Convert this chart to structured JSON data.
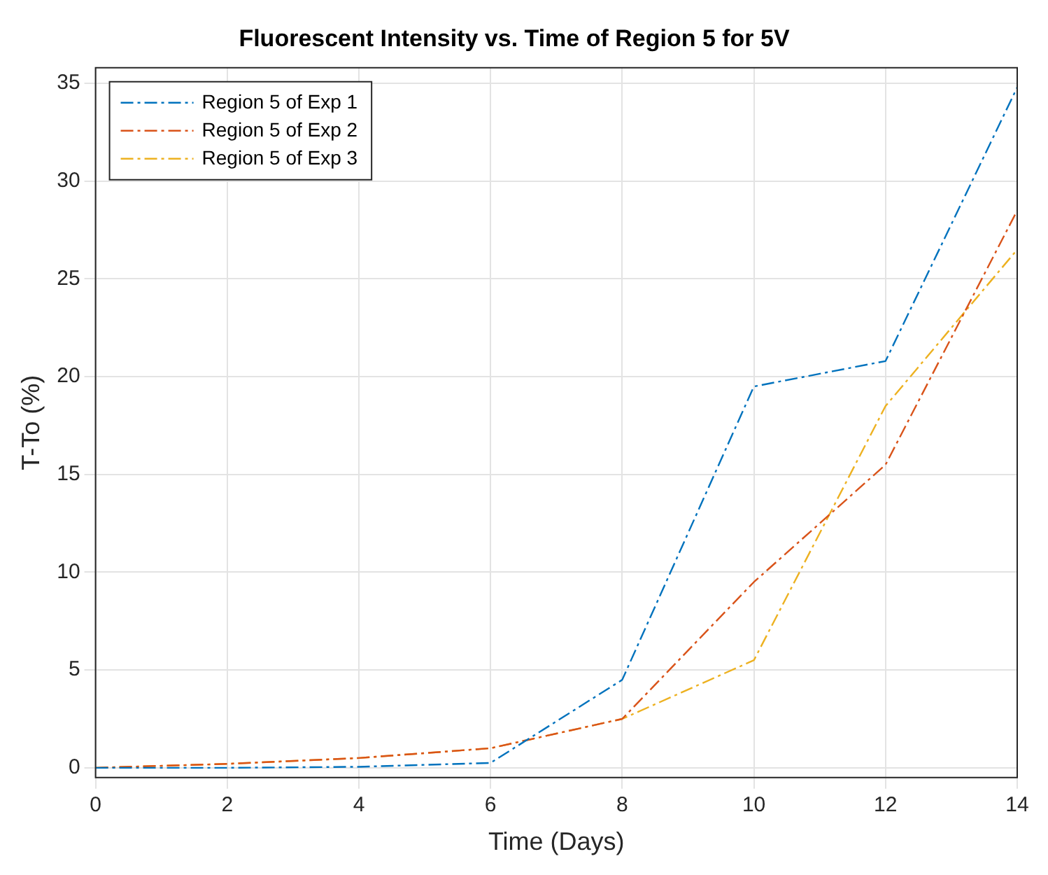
{
  "chart_data": {
    "type": "line",
    "title": "Fluorescent Intensity vs. Time of Region 5 for 5V",
    "xlabel": "Time (Days)",
    "ylabel": "T-To (%)",
    "x": [
      0,
      2,
      4,
      6,
      8,
      10,
      12,
      14
    ],
    "series": [
      {
        "name": "Region 5 of Exp 1",
        "color": "#0072bd",
        "values": [
          0,
          0,
          0.05,
          0.25,
          4.5,
          19.5,
          20.8,
          34.8
        ]
      },
      {
        "name": "Region 5 of Exp 2",
        "color": "#d95319",
        "values": [
          0,
          0.2,
          0.5,
          1.0,
          2.5,
          9.5,
          15.5,
          28.5
        ]
      },
      {
        "name": "Region 5 of Exp 3",
        "color": "#edb120",
        "values": [
          0,
          0.2,
          0.5,
          1.0,
          2.5,
          5.5,
          18.5,
          26.5
        ]
      }
    ],
    "xlim": [
      0,
      14
    ],
    "xticks": [
      0,
      2,
      4,
      6,
      8,
      10,
      12,
      14
    ],
    "ylim": [
      -0.5,
      35.8
    ],
    "yticks": [
      0,
      5,
      10,
      15,
      20,
      25,
      30,
      35
    ],
    "grid": true,
    "legend": "top left",
    "marker": "none",
    "line_style": "dashed"
  }
}
